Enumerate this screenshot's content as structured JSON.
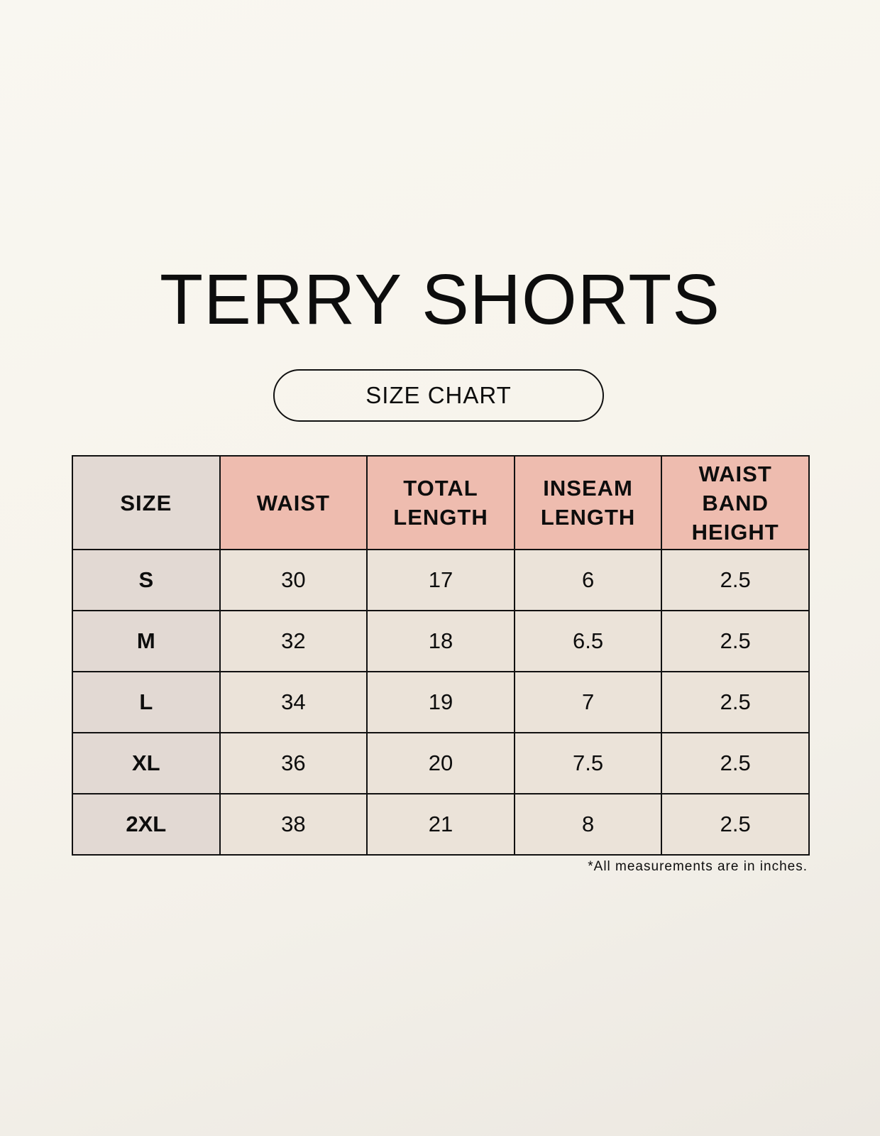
{
  "title": "TERRY SHORTS",
  "subtitle": "SIZE CHART",
  "table": {
    "headers": [
      "SIZE",
      "WAIST",
      "TOTAL LENGTH",
      "INSEAM LENGTH",
      "WAIST BAND HEIGHT"
    ],
    "rows": [
      [
        "S",
        "30",
        "17",
        "6",
        "2.5"
      ],
      [
        "M",
        "32",
        "18",
        "6.5",
        "2.5"
      ],
      [
        "L",
        "34",
        "19",
        "7",
        "2.5"
      ],
      [
        "XL",
        "36",
        "20",
        "7.5",
        "2.5"
      ],
      [
        "2XL",
        "38",
        "21",
        "8",
        "2.5"
      ]
    ]
  },
  "footnote": "*All measurements are in inches.",
  "colors": {
    "header": "#eebcaf",
    "size_column": "#e2d9d3",
    "cell": "#ebe3d9",
    "background": "#f8f5ef"
  }
}
